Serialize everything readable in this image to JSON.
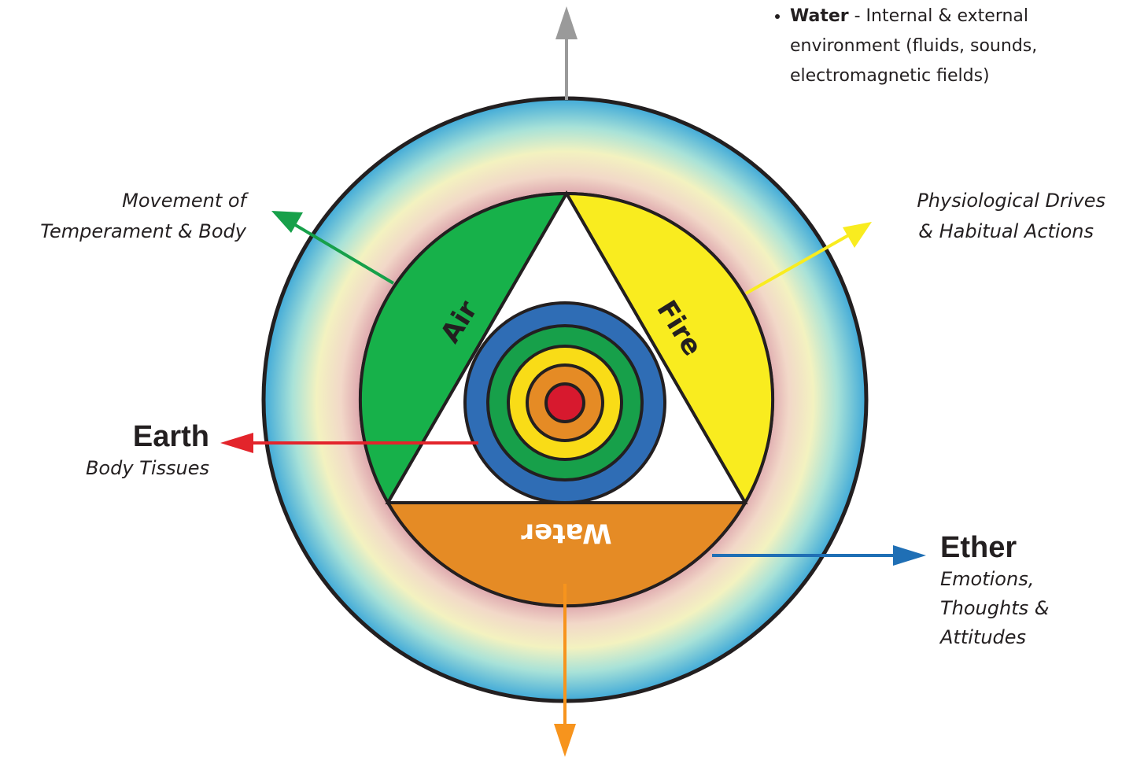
{
  "note_bullet": {
    "term": "Water",
    "text": "- Internal & external environment (fluids, sounds, electromagnetic fields)"
  },
  "labels": {
    "air_direction": [
      "Movement of",
      "Temperament & Body"
    ],
    "fire_direction": [
      "Physiological Drives",
      "& Habitual Actions"
    ],
    "earth": {
      "title": "Earth",
      "subtitle": "Body Tissues"
    },
    "ether": {
      "title": "Ether",
      "subtitle": [
        "Emotions,",
        "Thoughts &",
        "Attitudes"
      ]
    }
  },
  "segments": {
    "air": "Air",
    "fire": "Fire",
    "water": "Water"
  }
}
